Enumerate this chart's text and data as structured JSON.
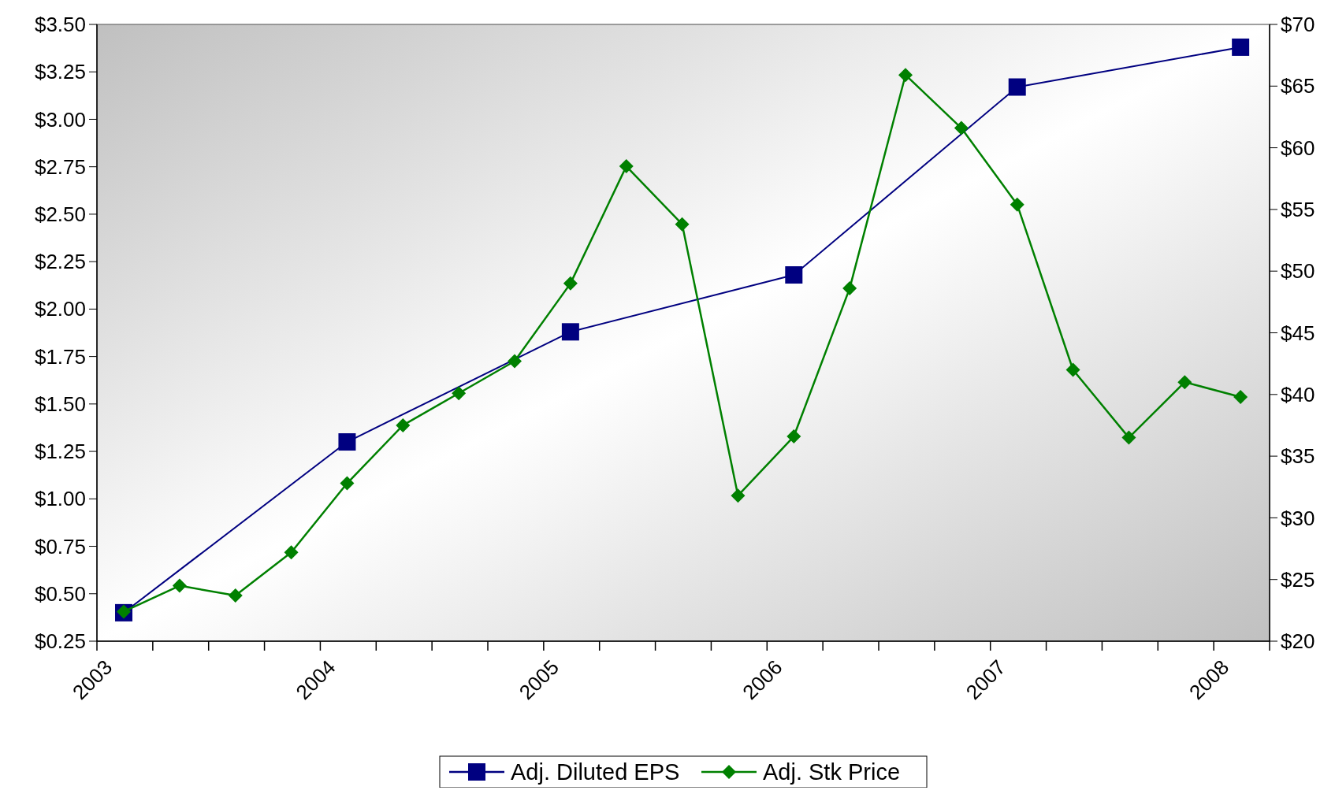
{
  "chart_data": {
    "type": "line",
    "x": [
      2003.12,
      2004.12,
      2005.12,
      2006.12,
      2007.12,
      2008.12
    ],
    "series": [
      {
        "name": "Adj. Diluted EPS",
        "color": "#000080",
        "marker": "square",
        "values": [
          0.4,
          1.3,
          1.88,
          2.18,
          3.17,
          3.38
        ]
      },
      {
        "name": "Adj. Stk Price",
        "color": "#008000",
        "marker": "diamond",
        "axis": "y2",
        "x": [
          2003.12,
          2003.37,
          2003.62,
          2003.87,
          2004.12,
          2004.37,
          2004.62,
          2004.87,
          2005.12,
          2005.37,
          2005.62,
          2005.87,
          2006.12,
          2006.37,
          2006.62,
          2006.87,
          2007.12,
          2007.37,
          2007.62,
          2007.87,
          2008.12
        ],
        "values": [
          22.4,
          24.5,
          23.7,
          27.2,
          32.8,
          37.5,
          40.1,
          42.7,
          49.0,
          58.5,
          53.8,
          31.8,
          36.6,
          48.6,
          65.9,
          61.6,
          55.4,
          42.0,
          36.5,
          41.0,
          39.8
        ]
      }
    ],
    "xlim": [
      2003,
      2008.25
    ],
    "xticks": [
      2003,
      {
        "value": 2003.25,
        "label": null
      },
      {
        "value": 2003.5,
        "label": null
      },
      {
        "value": 2003.75,
        "label": null
      },
      2004,
      {
        "value": 2004.25,
        "label": null
      },
      {
        "value": 2004.5,
        "label": null
      },
      {
        "value": 2004.75,
        "label": null
      },
      2005,
      {
        "value": 2005.25,
        "label": null
      },
      {
        "value": 2005.5,
        "label": null
      },
      {
        "value": 2005.75,
        "label": null
      },
      2006,
      {
        "value": 2006.25,
        "label": null
      },
      {
        "value": 2006.5,
        "label": null
      },
      {
        "value": 2006.75,
        "label": null
      },
      2007,
      {
        "value": 2007.25,
        "label": null
      },
      {
        "value": 2007.5,
        "label": null
      },
      {
        "value": 2007.75,
        "label": null
      },
      2008,
      {
        "value": 2008.25,
        "label": null
      }
    ],
    "ylim": [
      0.25,
      3.5
    ],
    "yticks": [
      {
        "value": 0.25,
        "label": "$0.25"
      },
      {
        "value": 0.5,
        "label": "$0.50"
      },
      {
        "value": 0.75,
        "label": "$0.75"
      },
      {
        "value": 1,
        "label": "$1.00"
      },
      {
        "value": 1.25,
        "label": "$1.25"
      },
      {
        "value": 1.5,
        "label": "$1.50"
      },
      {
        "value": 1.75,
        "label": "$1.75"
      },
      {
        "value": 2,
        "label": "$2.00"
      },
      {
        "value": 2.25,
        "label": "$2.25"
      },
      {
        "value": 2.5,
        "label": "$2.50"
      },
      {
        "value": 2.75,
        "label": "$2.75"
      },
      {
        "value": 3,
        "label": "$3.00"
      },
      {
        "value": 3.25,
        "label": "$3.25"
      },
      {
        "value": 3.5,
        "label": "$3.50"
      }
    ],
    "y2lim": [
      20,
      70
    ],
    "y2ticks": [
      {
        "value": 20,
        "label": "$20"
      },
      {
        "value": 25,
        "label": "$25"
      },
      {
        "value": 30,
        "label": "$30"
      },
      {
        "value": 35,
        "label": "$35"
      },
      {
        "value": 40,
        "label": "$40"
      },
      {
        "value": 45,
        "label": "$45"
      },
      {
        "value": 50,
        "label": "$50"
      },
      {
        "value": 55,
        "label": "$55"
      },
      {
        "value": 60,
        "label": "$60"
      },
      {
        "value": 65,
        "label": "$65"
      },
      {
        "value": 70,
        "label": "$70"
      }
    ],
    "grid": false,
    "legend": "bottom",
    "line_style": "solid"
  }
}
